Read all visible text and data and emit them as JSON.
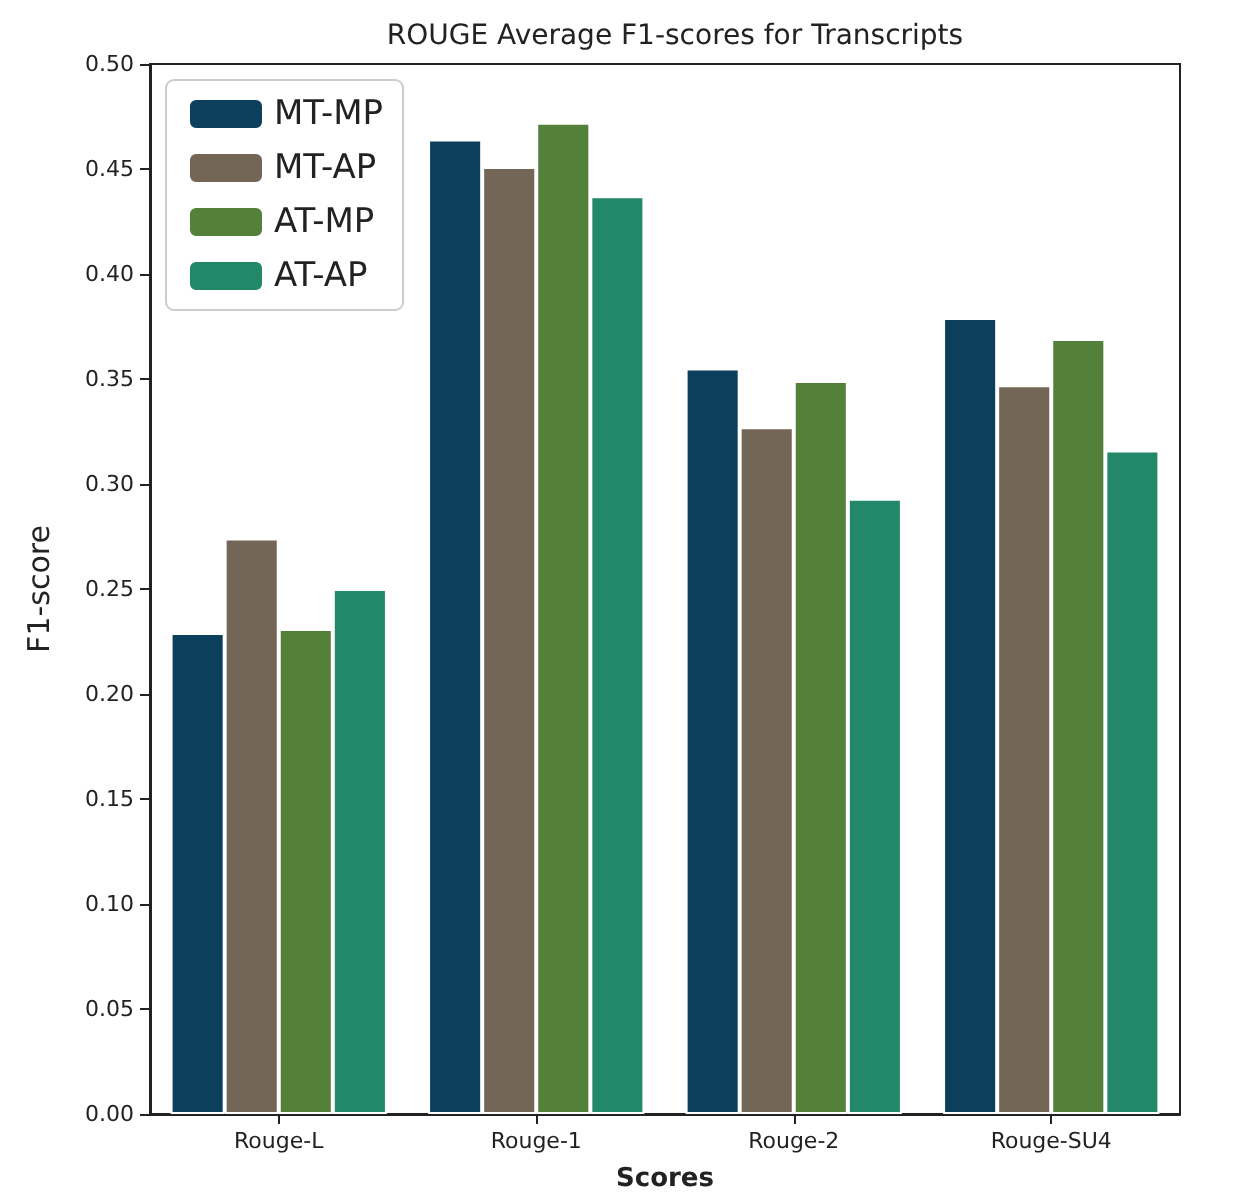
{
  "chart_data": {
    "type": "bar",
    "title": "ROUGE Average F1-scores for Transcripts",
    "xlabel": "Scores",
    "ylabel": "F1-score",
    "categories": [
      "Rouge-L",
      "Rouge-1",
      "Rouge-2",
      "Rouge-SU4"
    ],
    "series": [
      {
        "name": "MT-MP",
        "color": "#0b3f5c",
        "values": [
          0.229,
          0.464,
          0.355,
          0.379
        ]
      },
      {
        "name": "MT-AP",
        "color": "#736656",
        "values": [
          0.274,
          0.451,
          0.327,
          0.347
        ]
      },
      {
        "name": "AT-MP",
        "color": "#53813a",
        "values": [
          0.231,
          0.472,
          0.349,
          0.369
        ]
      },
      {
        "name": "AT-AP",
        "color": "#23876a",
        "values": [
          0.25,
          0.437,
          0.293,
          0.316
        ]
      }
    ],
    "ylim": [
      0,
      0.5
    ],
    "yticks": [
      {
        "value": 0,
        "label": "0.00"
      },
      {
        "value": 0.05,
        "label": "0.05"
      },
      {
        "value": 0.1,
        "label": "0.10"
      },
      {
        "value": 0.15,
        "label": "0.15"
      },
      {
        "value": 0.2,
        "label": "0.20"
      },
      {
        "value": 0.25,
        "label": "0.25"
      },
      {
        "value": 0.3,
        "label": "0.30"
      },
      {
        "value": 0.35,
        "label": "0.35"
      },
      {
        "value": 0.4,
        "label": "0.40"
      },
      {
        "value": 0.45,
        "label": "0.45"
      },
      {
        "value": 0.5,
        "label": "0.50"
      }
    ],
    "grid": false,
    "legend": "top left"
  }
}
